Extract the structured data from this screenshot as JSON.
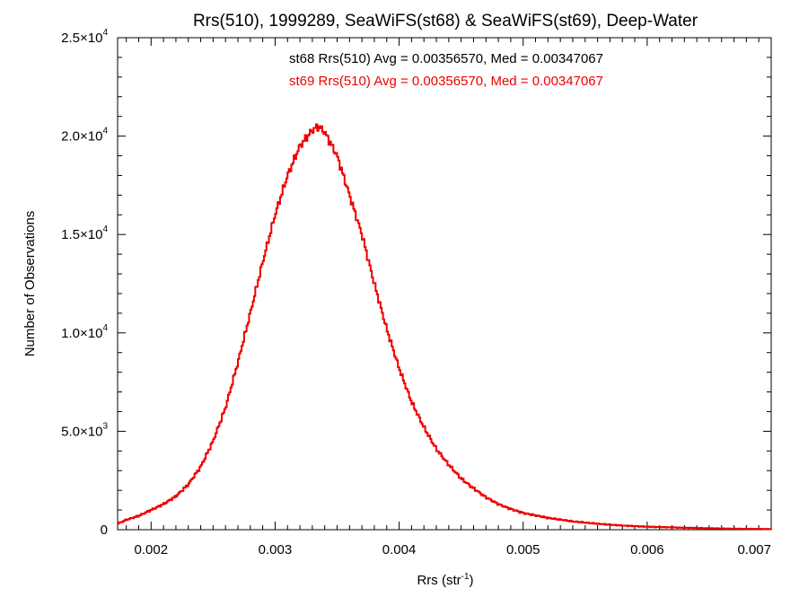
{
  "chart_data": {
    "type": "histogram",
    "title": "Rrs(510), 1999289, SeaWiFS(st68) & SeaWiFS(st69), Deep-Water",
    "xlabel": {
      "base": "Rrs (str",
      "sup": "-1",
      "close": ")"
    },
    "ylabel": "Number of Observations",
    "xlim": [
      0.00173,
      0.007
    ],
    "ylim": [
      0,
      25000
    ],
    "x_ticks": [
      {
        "value": 0.002,
        "label": "0.002"
      },
      {
        "value": 0.003,
        "label": "0.003"
      },
      {
        "value": 0.004,
        "label": "0.004"
      },
      {
        "value": 0.005,
        "label": "0.005"
      },
      {
        "value": 0.006,
        "label": "0.006"
      },
      {
        "value": 0.007,
        "label": "0.007"
      }
    ],
    "y_ticks": [
      {
        "value": 0,
        "mant": "0",
        "exp": ""
      },
      {
        "value": 5000,
        "mant": "5.0×10",
        "exp": "3"
      },
      {
        "value": 10000,
        "mant": "1.0×10",
        "exp": "4"
      },
      {
        "value": 15000,
        "mant": "1.5×10",
        "exp": "4"
      },
      {
        "value": 20000,
        "mant": "2.0×10",
        "exp": "4"
      },
      {
        "value": 25000,
        "mant": "2.5×10",
        "exp": "4"
      }
    ],
    "annotations": [
      {
        "text": "st68 Rrs(510) Avg = 0.00356570, Med = 0.00347067",
        "color": "#000000"
      },
      {
        "text": "st69 Rrs(510) Avg = 0.00356570, Med = 0.00347067",
        "color": "#ee0000"
      }
    ],
    "series": [
      {
        "color": "#ee0000",
        "points": [
          [
            0.00173,
            300
          ],
          [
            0.0018,
            500
          ],
          [
            0.0019,
            700
          ],
          [
            0.002,
            1000
          ],
          [
            0.0021,
            1300
          ],
          [
            0.0022,
            1700
          ],
          [
            0.0023,
            2300
          ],
          [
            0.0024,
            3200
          ],
          [
            0.0025,
            4500
          ],
          [
            0.0026,
            6200
          ],
          [
            0.0027,
            8500
          ],
          [
            0.0028,
            11000
          ],
          [
            0.0029,
            13600
          ],
          [
            0.003,
            16000
          ],
          [
            0.0031,
            18000
          ],
          [
            0.0032,
            19500
          ],
          [
            0.0033,
            20300
          ],
          [
            0.00335,
            20500
          ],
          [
            0.0034,
            20200
          ],
          [
            0.0035,
            19000
          ],
          [
            0.0036,
            17000
          ],
          [
            0.0037,
            15000
          ],
          [
            0.0038,
            12500
          ],
          [
            0.0039,
            10200
          ],
          [
            0.004,
            8200
          ],
          [
            0.0041,
            6500
          ],
          [
            0.0042,
            5200
          ],
          [
            0.0043,
            4100
          ],
          [
            0.0044,
            3300
          ],
          [
            0.0045,
            2600
          ],
          [
            0.0046,
            2100
          ],
          [
            0.0047,
            1650
          ],
          [
            0.0048,
            1300
          ],
          [
            0.0049,
            1050
          ],
          [
            0.005,
            850
          ],
          [
            0.0052,
            600
          ],
          [
            0.0054,
            420
          ],
          [
            0.0056,
            300
          ],
          [
            0.0058,
            210
          ],
          [
            0.006,
            150
          ],
          [
            0.0063,
            100
          ],
          [
            0.0066,
            60
          ],
          [
            0.007,
            30
          ]
        ]
      }
    ]
  }
}
